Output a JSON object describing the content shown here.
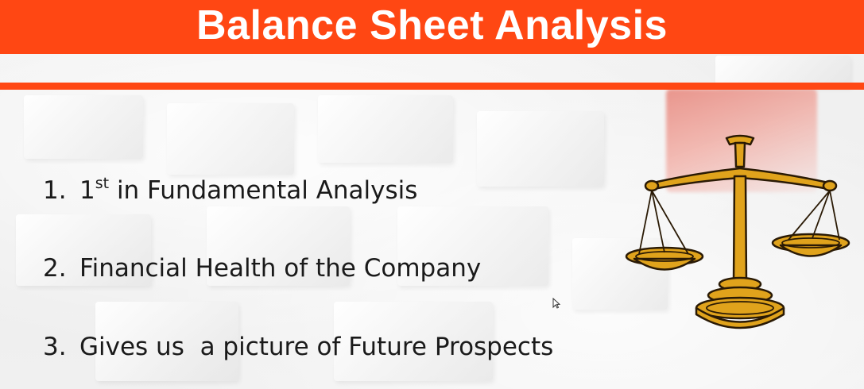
{
  "slide": {
    "title": "Balance Sheet Analysis",
    "items": [
      {
        "number": "1.",
        "text_before_sup": "1",
        "sup": "st",
        "text_after_sup": " in Fundamental Analysis"
      },
      {
        "number": "2.",
        "text": "Financial Health of the Company"
      },
      {
        "number": "3.",
        "text": "Gives us  a picture of Future Prospects"
      }
    ],
    "image": {
      "icon": "balance-scale-icon"
    }
  },
  "colors": {
    "accent": "#ff4713",
    "title_text": "#ffffff",
    "body_text": "#1a1a1a",
    "scale_gold": "#e0a31c"
  }
}
